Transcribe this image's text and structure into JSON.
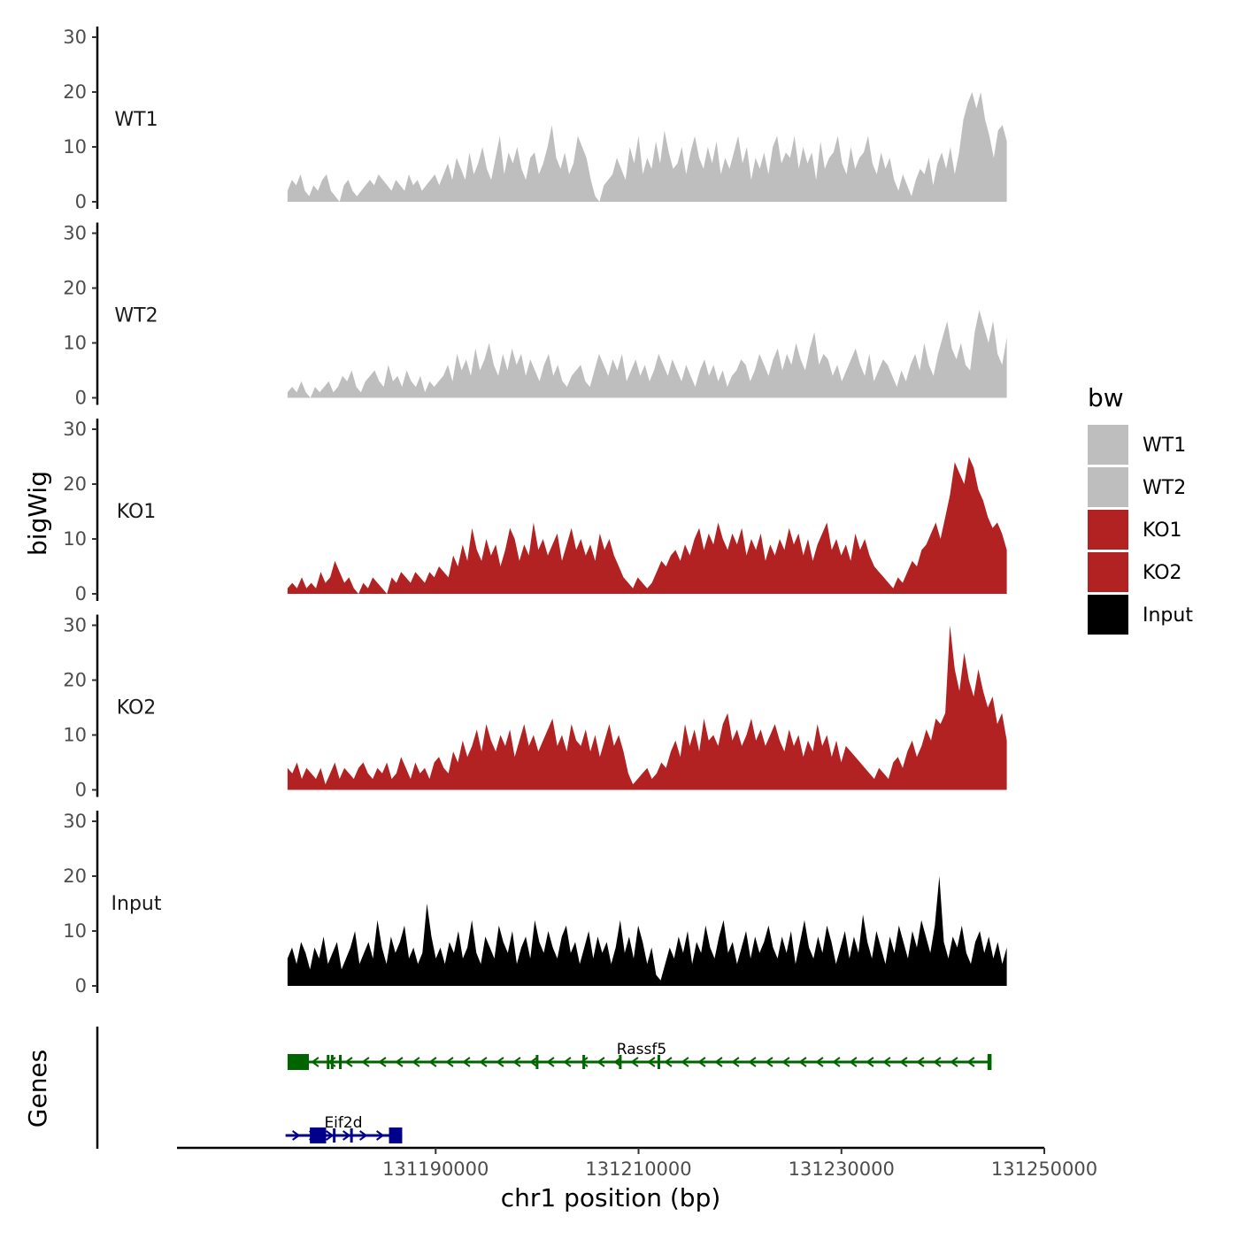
{
  "chart_data": {
    "type": "area",
    "ylabel": "bigWig",
    "xlabel": "chr1 position (bp)",
    "ylim": [
      0,
      30
    ],
    "y_ticks": [
      "0",
      "10",
      "20",
      "30"
    ],
    "xlim": [
      131164500,
      131250000
    ],
    "x_ticks": [
      {
        "value": 131190000,
        "label": "131190000"
      },
      {
        "value": 131210000,
        "label": "131210000"
      },
      {
        "value": 131230000,
        "label": "131230000"
      },
      {
        "value": 131250000,
        "label": "131250000"
      }
    ],
    "region": [
      131175400,
      131246300
    ],
    "tracks": [
      {
        "name": "WT1",
        "color": "#bebebe",
        "values": [
          2,
          4,
          3,
          5,
          2,
          1,
          3,
          2,
          4,
          5,
          2,
          1,
          0,
          3,
          4,
          2,
          1,
          2,
          3,
          4,
          3,
          5,
          4,
          3,
          2,
          4,
          3,
          2,
          5,
          3,
          4,
          2,
          3,
          4,
          5,
          3,
          5,
          7,
          4,
          8,
          6,
          4,
          9,
          5,
          7,
          10,
          6,
          4,
          8,
          12,
          5,
          9,
          7,
          10,
          6,
          4,
          8,
          9,
          5,
          7,
          10,
          14,
          8,
          6,
          9,
          5,
          7,
          12,
          10,
          8,
          4,
          1,
          0,
          3,
          4,
          5,
          8,
          6,
          4,
          10,
          7,
          12,
          5,
          8,
          6,
          11,
          7,
          13,
          9,
          6,
          7,
          10,
          5,
          9,
          12,
          8,
          6,
          10,
          7,
          11,
          5,
          8,
          6,
          9,
          12,
          7,
          10,
          4,
          8,
          6,
          9,
          5,
          10,
          12,
          7,
          9,
          8,
          12,
          6,
          10,
          7,
          9,
          4,
          11,
          6,
          8,
          9,
          12,
          7,
          5,
          10,
          6,
          8,
          9,
          12,
          7,
          5,
          9,
          6,
          8,
          4,
          2,
          5,
          3,
          1,
          4,
          6,
          5,
          8,
          3,
          7,
          9,
          6,
          10,
          5,
          9,
          15,
          18,
          20,
          17,
          20,
          15,
          12,
          8,
          13,
          14,
          11
        ]
      },
      {
        "name": "WT2",
        "color": "#bebebe",
        "values": [
          1,
          2,
          1,
          3,
          1,
          0,
          2,
          1,
          2,
          3,
          1,
          2,
          4,
          3,
          5,
          2,
          1,
          3,
          4,
          5,
          3,
          2,
          6,
          3,
          4,
          2,
          5,
          3,
          2,
          4,
          1,
          3,
          2,
          3,
          4,
          6,
          3,
          8,
          5,
          7,
          4,
          9,
          5,
          7,
          10,
          6,
          4,
          8,
          5,
          9,
          6,
          8,
          4,
          7,
          5,
          3,
          6,
          8,
          4,
          6,
          3,
          2,
          4,
          5,
          6,
          3,
          2,
          5,
          8,
          6,
          4,
          7,
          5,
          8,
          3,
          5,
          7,
          4,
          6,
          3,
          5,
          8,
          6,
          4,
          7,
          5,
          3,
          6,
          4,
          2,
          5,
          7,
          4,
          6,
          3,
          5,
          2,
          4,
          5,
          7,
          6,
          3,
          5,
          8,
          6,
          4,
          7,
          9,
          5,
          8,
          6,
          10,
          7,
          5,
          9,
          12,
          6,
          8,
          7,
          4,
          6,
          3,
          5,
          7,
          9,
          6,
          4,
          8,
          3,
          5,
          7,
          6,
          4,
          2,
          5,
          3,
          6,
          8,
          5,
          10,
          6,
          4,
          8,
          11,
          14,
          9,
          7,
          10,
          6,
          5,
          12,
          16,
          13,
          10,
          14,
          8,
          6,
          11
        ]
      },
      {
        "name": "KO1",
        "color": "#b22222",
        "values": [
          1,
          2,
          1,
          3,
          1,
          2,
          1,
          4,
          2,
          3,
          6,
          4,
          2,
          3,
          1,
          0,
          2,
          1,
          3,
          2,
          1,
          0,
          3,
          2,
          4,
          3,
          2,
          4,
          3,
          2,
          4,
          3,
          5,
          4,
          3,
          7,
          5,
          9,
          6,
          12,
          8,
          6,
          10,
          7,
          9,
          5,
          8,
          12,
          10,
          6,
          9,
          7,
          13,
          8,
          10,
          7,
          9,
          11,
          6,
          9,
          12,
          8,
          10,
          7,
          9,
          6,
          11,
          8,
          10,
          7,
          5,
          3,
          2,
          1,
          3,
          2,
          1,
          2,
          4,
          6,
          5,
          7,
          8,
          6,
          9,
          7,
          10,
          12,
          8,
          11,
          9,
          13,
          10,
          8,
          11,
          9,
          12,
          7,
          10,
          8,
          11,
          6,
          9,
          7,
          10,
          8,
          12,
          9,
          11,
          7,
          10,
          6,
          9,
          11,
          13,
          8,
          10,
          7,
          9,
          6,
          11,
          8,
          10,
          7,
          5,
          4,
          3,
          2,
          1,
          3,
          2,
          4,
          6,
          5,
          8,
          9,
          11,
          13,
          10,
          14,
          18,
          24,
          22,
          20,
          25,
          23,
          19,
          17,
          14,
          12,
          13,
          11,
          8
        ]
      },
      {
        "name": "KO2",
        "color": "#b22222",
        "values": [
          4,
          3,
          5,
          2,
          4,
          3,
          2,
          4,
          1,
          3,
          5,
          2,
          4,
          3,
          2,
          4,
          5,
          3,
          2,
          4,
          3,
          5,
          2,
          3,
          6,
          4,
          2,
          5,
          3,
          4,
          2,
          5,
          6,
          4,
          3,
          7,
          5,
          9,
          6,
          8,
          11,
          7,
          12,
          9,
          7,
          10,
          8,
          11,
          6,
          9,
          12,
          8,
          10,
          7,
          9,
          11,
          13,
          8,
          10,
          7,
          12,
          9,
          8,
          11,
          7,
          10,
          6,
          9,
          12,
          8,
          10,
          7,
          3,
          1,
          2,
          3,
          4,
          2,
          3,
          5,
          4,
          7,
          9,
          6,
          12,
          8,
          11,
          7,
          13,
          9,
          10,
          8,
          12,
          14,
          9,
          11,
          8,
          10,
          13,
          9,
          11,
          8,
          10,
          12,
          9,
          7,
          11,
          8,
          10,
          6,
          9,
          7,
          12,
          8,
          10,
          6,
          9,
          5,
          8,
          7,
          6,
          5,
          4,
          3,
          2,
          4,
          3,
          2,
          5,
          6,
          4,
          7,
          9,
          6,
          8,
          11,
          9,
          13,
          12,
          14,
          30,
          22,
          18,
          25,
          20,
          17,
          22,
          18,
          15,
          17,
          12,
          14,
          9
        ]
      },
      {
        "name": "Input",
        "color": "#000000",
        "values": [
          5,
          7,
          4,
          8,
          6,
          3,
          7,
          5,
          9,
          4,
          6,
          8,
          3,
          5,
          7,
          10,
          4,
          6,
          8,
          5,
          12,
          7,
          4,
          9,
          6,
          8,
          11,
          5,
          7,
          4,
          6,
          15,
          9,
          5,
          7,
          4,
          8,
          6,
          10,
          5,
          7,
          12,
          6,
          4,
          9,
          7,
          5,
          11,
          8,
          6,
          10,
          4,
          7,
          9,
          5,
          12,
          8,
          6,
          10,
          7,
          5,
          9,
          11,
          6,
          8,
          4,
          7,
          10,
          5,
          9,
          6,
          8,
          4,
          7,
          12,
          6,
          9,
          5,
          11,
          8,
          4,
          7,
          2,
          1,
          4,
          7,
          5,
          9,
          6,
          10,
          4,
          8,
          6,
          11,
          7,
          5,
          9,
          12,
          6,
          8,
          4,
          7,
          10,
          5,
          9,
          6,
          8,
          11,
          7,
          5,
          9,
          6,
          10,
          4,
          8,
          12,
          7,
          5,
          9,
          6,
          11,
          8,
          4,
          7,
          10,
          5,
          9,
          6,
          13,
          8,
          5,
          10,
          7,
          4,
          9,
          6,
          11,
          8,
          5,
          10,
          7,
          12,
          9,
          6,
          11,
          20,
          8,
          5,
          9,
          7,
          11,
          6,
          4,
          8,
          10,
          6,
          9,
          5,
          8,
          4,
          7
        ]
      }
    ],
    "genes_label": "Genes",
    "genes": [
      {
        "name": "Eif2d",
        "color": "#00008b",
        "start": 131175200,
        "end": 131186700,
        "strand": "+",
        "exons": [
          [
            131177600,
            131179200
          ],
          [
            131185400,
            131186700
          ]
        ],
        "minor_ticks": [
          131180000,
          131181700
        ]
      },
      {
        "name": "Rassf5",
        "color": "#006400",
        "start": 131175400,
        "end": 131244800,
        "strand": "-",
        "exons": [
          [
            131175400,
            131177500
          ],
          [
            131244400,
            131244800
          ]
        ],
        "minor_ticks": [
          131179400,
          131179800,
          131180600,
          131200000,
          131204600,
          131208200,
          131212000
        ]
      }
    ],
    "legend": {
      "title": "bw",
      "entries": [
        {
          "label": "WT1",
          "color": "#bebebe"
        },
        {
          "label": "WT2",
          "color": "#bebebe"
        },
        {
          "label": "KO1",
          "color": "#b22222"
        },
        {
          "label": "KO2",
          "color": "#b22222"
        },
        {
          "label": "Input",
          "color": "#000000"
        }
      ]
    }
  }
}
